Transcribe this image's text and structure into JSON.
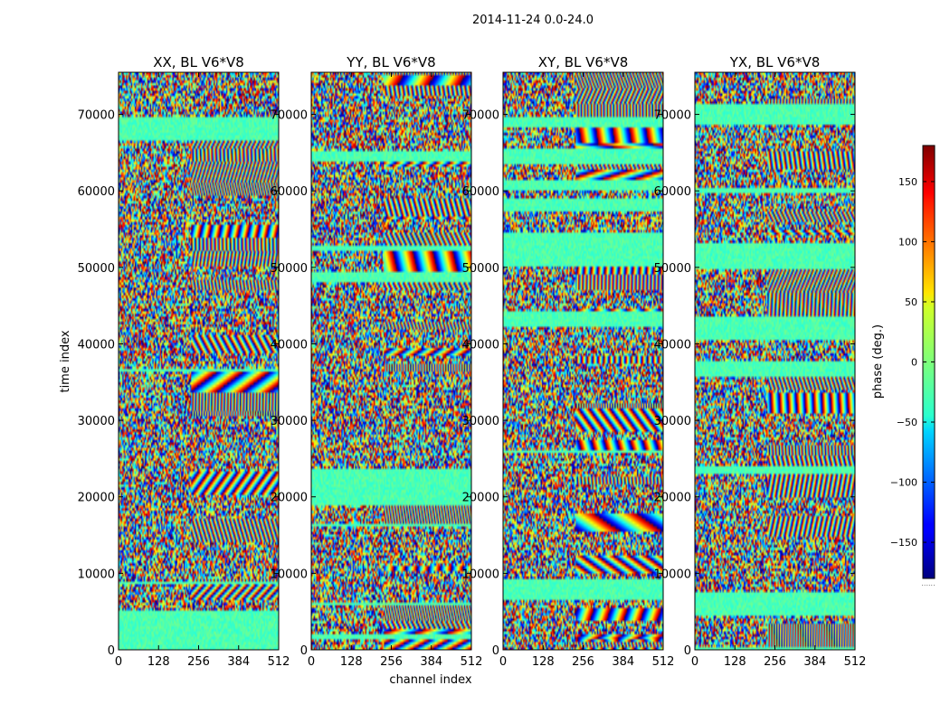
{
  "figure": {
    "suptitle": "2014-11-24 0.0-24.0",
    "xlabel": "channel index",
    "ylabel": "time index",
    "colorbar_label": "phase (deg.)",
    "colorbar_footer": "......"
  },
  "chart_data": [
    {
      "type": "heatmap",
      "title": "XX, BL V6*V8",
      "x_ticks": [
        0,
        128,
        256,
        384,
        512
      ],
      "y_ticks": [
        0,
        10000,
        20000,
        30000,
        40000,
        50000,
        60000,
        70000
      ],
      "xlim": [
        0,
        512
      ],
      "ylim": [
        0,
        75500
      ],
      "colormap": "jet",
      "clim": [
        -180,
        180
      ],
      "ylabel": "time index",
      "xlabel": ""
    },
    {
      "type": "heatmap",
      "title": "YY, BL V6*V8",
      "x_ticks": [
        0,
        128,
        256,
        384,
        512
      ],
      "y_ticks": [
        0,
        10000,
        20000,
        30000,
        40000,
        50000,
        60000,
        70000
      ],
      "xlim": [
        0,
        512
      ],
      "ylim": [
        0,
        75500
      ],
      "colormap": "jet",
      "clim": [
        -180,
        180
      ],
      "ylabel": "",
      "xlabel": "channel index"
    },
    {
      "type": "heatmap",
      "title": "XY, BL V6*V8",
      "x_ticks": [
        0,
        128,
        256,
        384,
        512
      ],
      "y_ticks": [
        0,
        10000,
        20000,
        30000,
        40000,
        50000,
        60000,
        70000
      ],
      "xlim": [
        0,
        512
      ],
      "ylim": [
        0,
        75500
      ],
      "colormap": "jet",
      "clim": [
        -180,
        180
      ],
      "ylabel": "",
      "xlabel": ""
    },
    {
      "type": "heatmap",
      "title": "YX, BL V6*V8",
      "x_ticks": [
        0,
        128,
        256,
        384,
        512
      ],
      "y_ticks": [
        0,
        10000,
        20000,
        30000,
        40000,
        50000,
        60000,
        70000
      ],
      "xlim": [
        0,
        512
      ],
      "ylim": [
        0,
        75500
      ],
      "colormap": "jet",
      "clim": [
        -180,
        180
      ],
      "ylabel": "",
      "xlabel": ""
    }
  ],
  "colorbar": {
    "ticks": [
      -150,
      -100,
      -50,
      0,
      50,
      100,
      150
    ],
    "range": [
      -180,
      180
    ],
    "colormap": "jet"
  }
}
